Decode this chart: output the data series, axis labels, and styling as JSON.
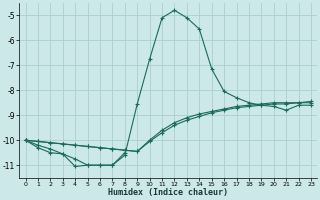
{
  "xlabel": "Humidex (Indice chaleur)",
  "xlim": [
    -0.5,
    23.5
  ],
  "ylim": [
    -11.5,
    -4.5
  ],
  "yticks": [
    -11,
    -10,
    -9,
    -8,
    -7,
    -6,
    -5
  ],
  "xticks": [
    0,
    1,
    2,
    3,
    4,
    5,
    6,
    7,
    8,
    9,
    10,
    11,
    12,
    13,
    14,
    15,
    16,
    17,
    18,
    19,
    20,
    21,
    22,
    23
  ],
  "bg_color": "#cce8e8",
  "grid_color": "#aacfcf",
  "line_color": "#1a6b5a",
  "line1_x": [
    0,
    1,
    2,
    3,
    4,
    5,
    6,
    7,
    8,
    9,
    10,
    11,
    12,
    13,
    14,
    15,
    16,
    17,
    18,
    19,
    20,
    21,
    22,
    23
  ],
  "line1_y": [
    -10.0,
    -10.2,
    -10.35,
    -10.55,
    -10.75,
    -11.0,
    -11.0,
    -11.0,
    -10.6,
    -8.55,
    -6.75,
    -5.1,
    -4.8,
    -5.1,
    -5.55,
    -7.15,
    -8.05,
    -8.3,
    -8.5,
    -8.6,
    -8.65,
    -8.8,
    -8.6,
    -8.6
  ],
  "line2_x": [
    0,
    1,
    2,
    3,
    4,
    5,
    6,
    7,
    8,
    9,
    10,
    11,
    12,
    13,
    14,
    15,
    16,
    17,
    18,
    19,
    20,
    21,
    22,
    23
  ],
  "line2_y": [
    -10.0,
    -10.05,
    -10.1,
    -10.15,
    -10.2,
    -10.25,
    -10.3,
    -10.35,
    -10.4,
    -10.45,
    -10.0,
    -9.6,
    -9.3,
    -9.1,
    -8.95,
    -8.85,
    -8.75,
    -8.65,
    -8.6,
    -8.55,
    -8.5,
    -8.5,
    -8.5,
    -8.45
  ],
  "line3_x": [
    0,
    1,
    2,
    3,
    4,
    5,
    6,
    7,
    8,
    9,
    10,
    11,
    12,
    13,
    14,
    15,
    16,
    17,
    18,
    19,
    20,
    21,
    22,
    23
  ],
  "line3_y": [
    -10.0,
    -10.05,
    -10.1,
    -10.15,
    -10.2,
    -10.25,
    -10.3,
    -10.35,
    -10.4,
    -10.45,
    -10.05,
    -9.7,
    -9.4,
    -9.2,
    -9.05,
    -8.9,
    -8.8,
    -8.7,
    -8.65,
    -8.6,
    -8.55,
    -8.55,
    -8.5,
    -8.5
  ],
  "line4_x": [
    0,
    1,
    2,
    3,
    4,
    5,
    6,
    7,
    8
  ],
  "line4_y": [
    -10.0,
    -10.3,
    -10.5,
    -10.55,
    -11.05,
    -11.0,
    -11.0,
    -11.0,
    -10.5
  ]
}
